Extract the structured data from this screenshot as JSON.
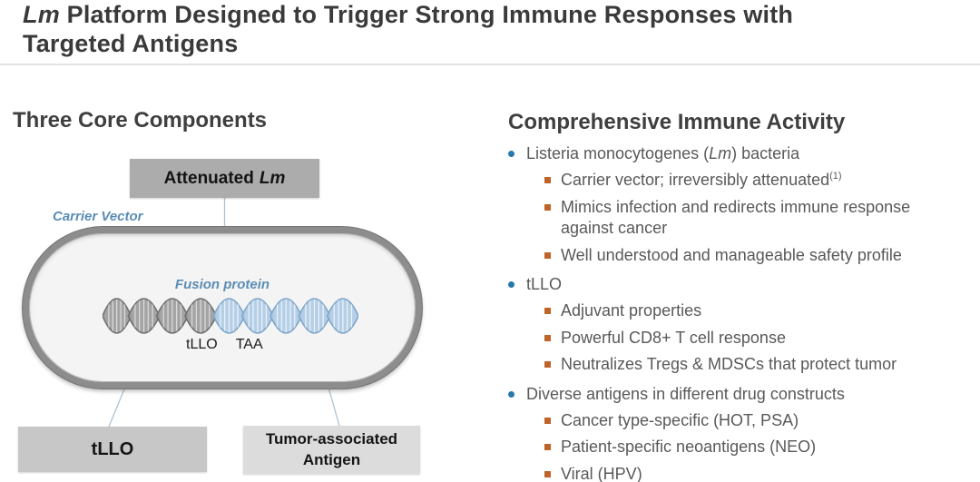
{
  "title": {
    "italic": "Lm",
    "rest": " Platform Designed to Trigger Strong Immune Responses with Targeted Antigens"
  },
  "left": {
    "heading": "Three Core Components",
    "diagram": {
      "attenuated_box_pre": "Attenuated",
      "attenuated_box_italic": "Lm",
      "carrier_vector_label": "Carrier Vector",
      "fusion_protein_label": "Fusion protein",
      "tllo_gene_label": "tLLO",
      "taa_gene_label": "TAA",
      "tllo_box_label": "tLLO",
      "taa_box_line1": "Tumor-associated",
      "taa_box_line2": "Antigen"
    }
  },
  "right": {
    "heading": "Comprehensive Immune Activity",
    "groups": [
      {
        "label_pre": "Listeria monocytogenes (",
        "label_italic": "Lm",
        "label_post": ") bacteria",
        "items": [
          {
            "text": "Carrier vector; irreversibly attenuated",
            "sup": "(1)"
          },
          {
            "text": "Mimics infection and redirects immune response against cancer"
          },
          {
            "text": "Well understood and manageable safety profile"
          }
        ]
      },
      {
        "label_pre": "tLLO",
        "items": [
          {
            "text": "Adjuvant properties"
          },
          {
            "text": "Powerful CD8+ T cell response"
          },
          {
            "text": "Neutralizes Tregs & MDSCs that protect tumor"
          }
        ]
      },
      {
        "label_pre": "Diverse antigens in different drug constructs",
        "items": [
          {
            "text": "Cancer type-specific (HOT, PSA)"
          },
          {
            "text": "Patient-specific neoantigens (NEO)"
          },
          {
            "text": "Viral (HPV)"
          }
        ]
      }
    ]
  },
  "colors": {
    "label_blue": "#5b8db4",
    "bullet_blue": "#2779ad",
    "bullet_orange": "#bf6428",
    "dna_gray": "#9b9b9b",
    "dna_blue": "#aecbe6",
    "box_dark_gray": "#acacac",
    "box_mid_gray": "#c7c7c7",
    "box_light_gray": "#dcdcdc",
    "heading_text": "#3f3f3f",
    "body_text": "#595959"
  }
}
